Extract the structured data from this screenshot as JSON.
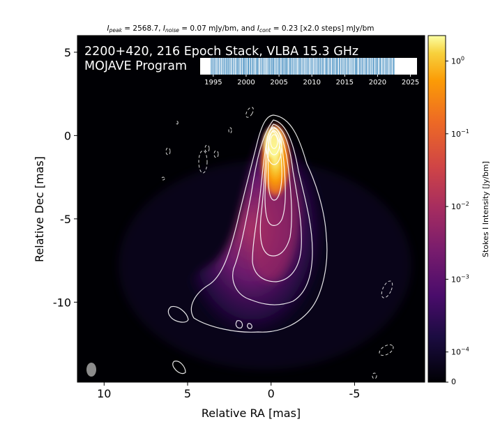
{
  "chart_data": {
    "type": "heatmap",
    "title_parts": {
      "peak_label": "peak",
      "peak_value": "= 2568.7,",
      "noise_label": "noise",
      "noise_value": "= 0.07 mJy/bm, and",
      "cont_label": "cont",
      "cont_value": "= 0.23 [x2.0 steps] mJy/bm"
    },
    "overlay_title": "2200+420, 216 Epoch Stack, VLBA 15.3 GHz",
    "overlay_subtitle": "MOJAVE Program",
    "xlabel": "Relative RA [mas]",
    "ylabel": "Relative Dec [mas]",
    "xlim": [
      11.6,
      -9.2
    ],
    "ylim": [
      -14.8,
      6.0
    ],
    "x_ticks": [
      {
        "value": 10,
        "label": "10"
      },
      {
        "value": 5,
        "label": "5"
      },
      {
        "value": 0,
        "label": "0"
      },
      {
        "value": -5,
        "label": "-5"
      }
    ],
    "y_ticks": [
      {
        "value": 5,
        "label": "5"
      },
      {
        "value": 0,
        "label": "0"
      },
      {
        "value": -5,
        "label": "-5"
      },
      {
        "value": -10,
        "label": "-10"
      }
    ],
    "colorbar": {
      "label": "Stokes I Intensity [Jy/bm]",
      "scale": "log",
      "colormap": "inferno",
      "ticks": [
        {
          "exp": 0,
          "base": "10",
          "sup": "0"
        },
        {
          "exp": -1,
          "base": "10",
          "sup": "−1"
        },
        {
          "exp": -2,
          "base": "10",
          "sup": "−2"
        },
        {
          "exp": -3,
          "base": "10",
          "sup": "−3"
        },
        {
          "exp": -4,
          "base": "10",
          "sup": "−4"
        }
      ],
      "zero_label": "0",
      "range_exp": [
        -4.3,
        0.35
      ]
    },
    "timeline": {
      "range": [
        1993,
        2026
      ],
      "data_range": [
        1994.6,
        2022.6
      ],
      "ticks": [
        "1995",
        "2000",
        "2005",
        "2010",
        "2015",
        "2020",
        "2025"
      ],
      "epoch_count": 216
    },
    "source": {
      "core_position": [
        0,
        0
      ],
      "peak_intensity_mjy": 2568.7,
      "noise_mjy": 0.07,
      "lowest_contour_mjy": 0.23,
      "contour_step_factor": 2.0
    },
    "colors": {
      "background": "#000004",
      "contour": "#ffffff",
      "beam": "#8c8c8c"
    }
  }
}
